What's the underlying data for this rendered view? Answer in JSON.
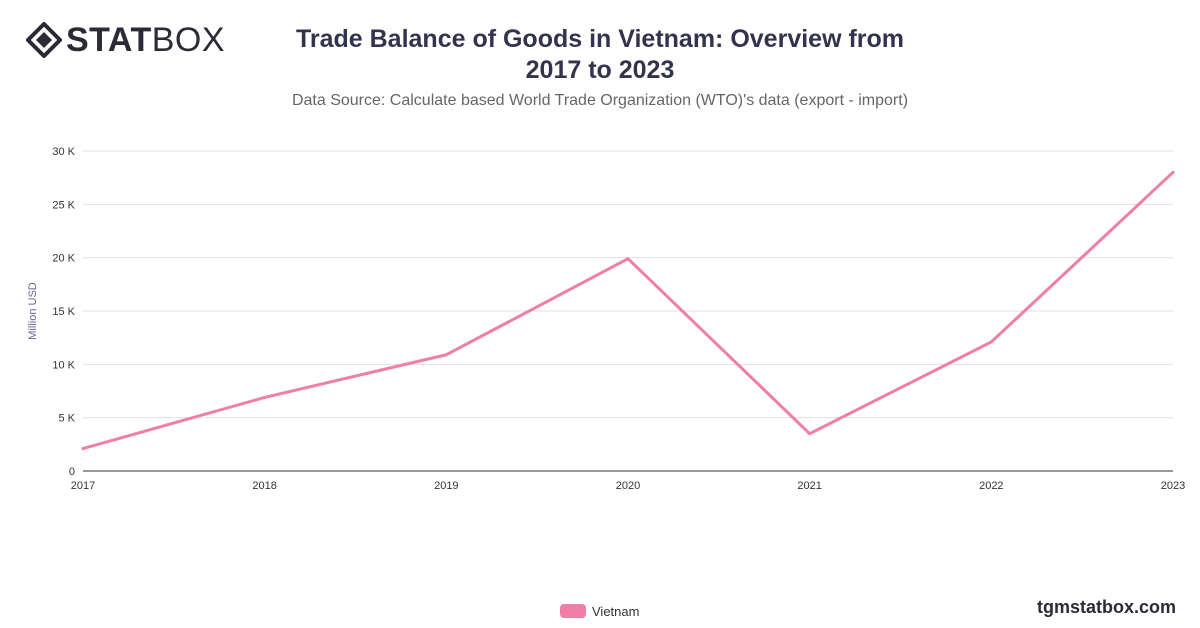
{
  "brand": {
    "logo_bold": "STAT",
    "logo_light": "BOX",
    "watermark": "tgmstatbox.com"
  },
  "chart_data": {
    "type": "line",
    "title": "Trade Balance of Goods in Vietnam: Overview from 2017 to 2023",
    "subtitle": "Data Source: Calculate based World Trade Organization (WTO)'s data (export - import)",
    "ylabel": "Million USD",
    "xlabel": "",
    "categories": [
      "2017",
      "2018",
      "2019",
      "2020",
      "2021",
      "2022",
      "2023"
    ],
    "series": [
      {
        "name": "Vietnam",
        "color": "#f07ea8",
        "values": [
          2100,
          6900,
          10900,
          19900,
          3500,
          12100,
          28000
        ]
      }
    ],
    "ylim": [
      0,
      30000
    ],
    "yticks": [
      0,
      5000,
      10000,
      15000,
      20000,
      25000,
      30000
    ],
    "ytick_labels": [
      "0",
      "5 K",
      "10 K",
      "15 K",
      "20 K",
      "25 K",
      "30 K"
    ],
    "grid": true,
    "legend_position": "bottom"
  }
}
